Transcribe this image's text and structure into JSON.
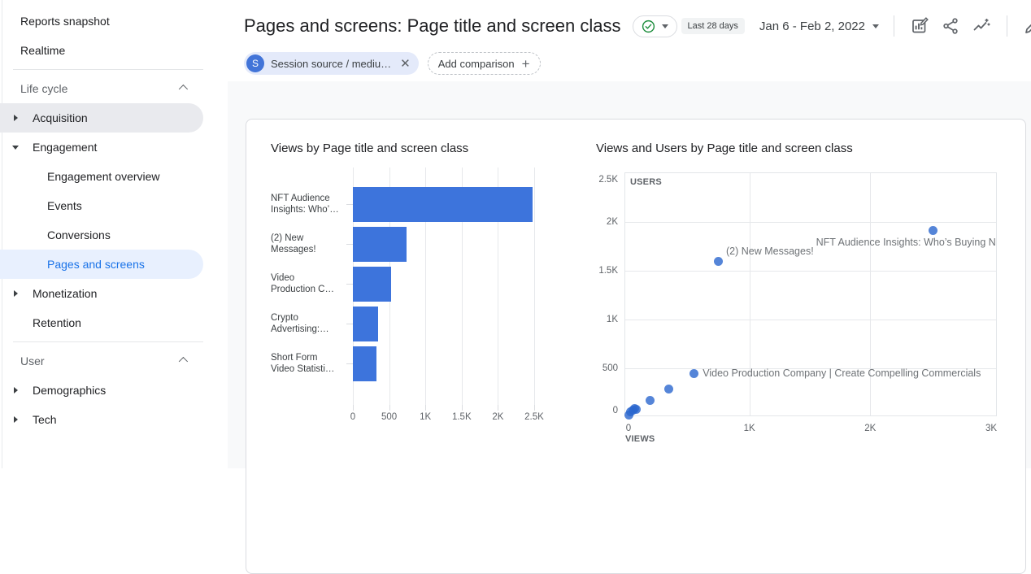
{
  "colors": {
    "accent_blue": "#1a73e8",
    "bar_blue": "#3d74dc",
    "scatter_blue": "#2a66ce",
    "active_item_bg": "#e8f0fe",
    "hover_item_bg": "#e9eaee",
    "comparison_chip_bg": "#e4eafa",
    "check_green": "#1e8e3e"
  },
  "sidebar": {
    "rows": [
      {
        "type": "top",
        "label": "Reports snapshot"
      },
      {
        "type": "top",
        "label": "Realtime"
      },
      {
        "type": "divider"
      },
      {
        "type": "header",
        "label": "Life cycle",
        "chevron": "up"
      },
      {
        "type": "parent",
        "label": "Acquisition",
        "arrow": "right",
        "highlight": "gray"
      },
      {
        "type": "parent",
        "label": "Engagement",
        "arrow": "down"
      },
      {
        "type": "child",
        "label": "Engagement overview"
      },
      {
        "type": "child",
        "label": "Events"
      },
      {
        "type": "child",
        "label": "Conversions"
      },
      {
        "type": "child",
        "label": "Pages and screens",
        "highlight": "blue"
      },
      {
        "type": "parent",
        "label": "Monetization",
        "arrow": "right"
      },
      {
        "type": "parent",
        "label": "Retention"
      },
      {
        "type": "divider"
      },
      {
        "type": "header",
        "label": "User",
        "chevron": "up"
      },
      {
        "type": "parent",
        "label": "Demographics",
        "arrow": "right"
      },
      {
        "type": "parent",
        "label": "Tech",
        "arrow": "right"
      }
    ]
  },
  "header": {
    "title": "Pages and screens: Page title and screen class",
    "date_badge": "Last 28 days",
    "date_range": "Jan 6 - Feb 2, 2022",
    "toolbar_icons": [
      "customize-report",
      "share",
      "insights",
      "edit"
    ]
  },
  "comparison": {
    "chip_initial": "S",
    "chip_label": "Session source / mediu…",
    "add_label": "Add comparison"
  },
  "chart_data": [
    {
      "type": "bar",
      "orientation": "horizontal",
      "title": "Views by Page title and screen class",
      "categories": [
        "NFT Audience\nInsights: Who’…",
        "(2) New\nMessages!",
        "Video\nProduction C…",
        "Crypto\nAdvertising:…",
        "Short Form\nVideo Statisti…"
      ],
      "values": [
        2480,
        740,
        530,
        350,
        330
      ],
      "xlim": [
        0,
        2500
      ],
      "x_ticks": {
        "labels": [
          "0",
          "500",
          "1K",
          "1.5K",
          "2K",
          "2.5K"
        ],
        "values": [
          0,
          500,
          1000,
          1500,
          2000,
          2500
        ]
      },
      "grid": "vertical"
    },
    {
      "type": "scatter",
      "title": "Views and Users by Page title and screen class",
      "xlabel": "VIEWS",
      "ylabel": "USERS",
      "xlim": [
        0,
        3070
      ],
      "ylim": [
        0,
        2500
      ],
      "x_ticks": {
        "labels": [
          "0",
          "1K",
          "2K",
          "3K"
        ],
        "values": [
          0,
          1000,
          2000,
          3000
        ]
      },
      "y_ticks": {
        "labels": [
          "2.5K",
          "2K",
          "1.5K",
          "1K",
          "500",
          "0"
        ],
        "values": [
          2500,
          2000,
          1500,
          1000,
          500,
          0
        ]
      },
      "points": [
        {
          "views": 2520,
          "users": 1910,
          "label": "NFT Audience Insights: Who’s Buying N",
          "label_pos": "left-below"
        },
        {
          "views": 740,
          "users": 1600,
          "label": "(2) New Messages!",
          "label_pos": "right-above"
        },
        {
          "views": 540,
          "users": 450,
          "label": "Video Production Company | Create Compelling Commercials",
          "label_pos": "right"
        },
        {
          "views": 330,
          "users": 290
        },
        {
          "views": 180,
          "users": 175
        },
        {
          "views": 65,
          "users": 80
        },
        {
          "views": 50,
          "users": 90
        },
        {
          "views": 40,
          "users": 75
        },
        {
          "views": 15,
          "users": 55
        },
        {
          "views": 5,
          "users": 20
        }
      ]
    }
  ]
}
